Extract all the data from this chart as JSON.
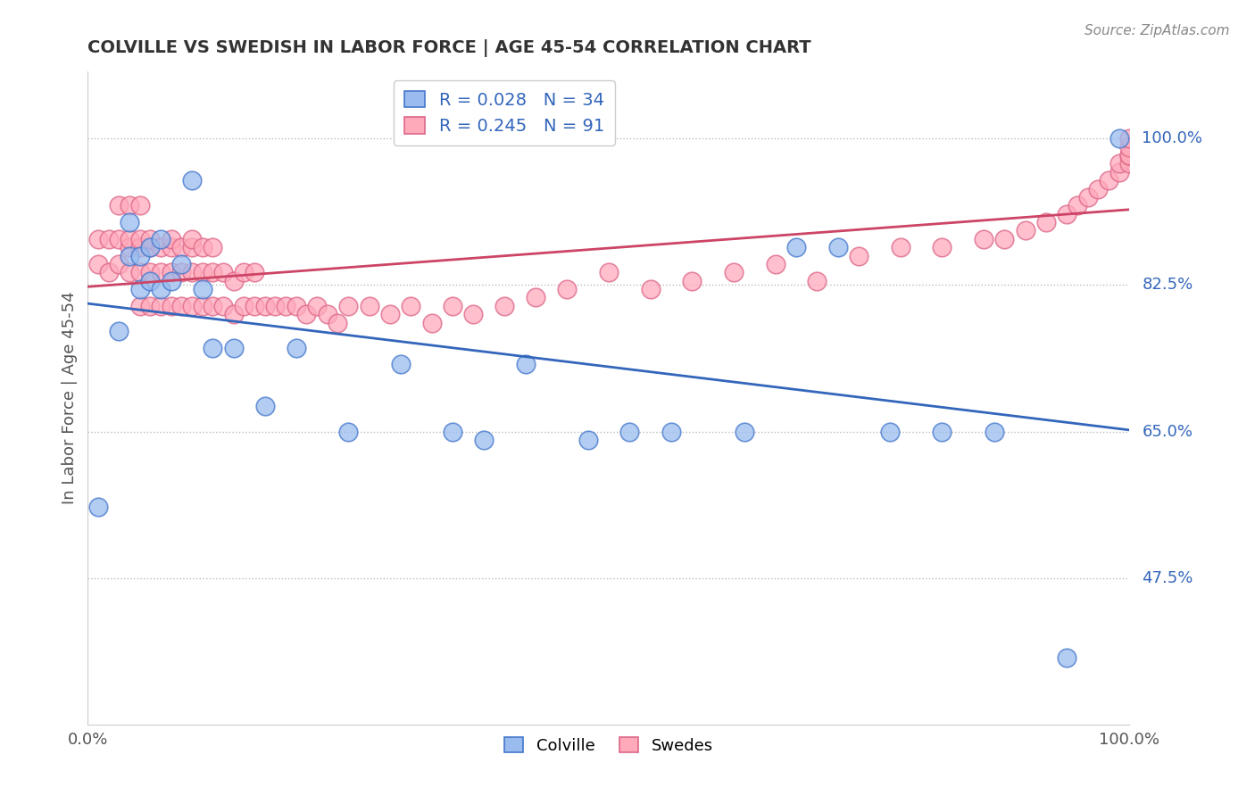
{
  "title": "COLVILLE VS SWEDISH IN LABOR FORCE | AGE 45-54 CORRELATION CHART",
  "source": "Source: ZipAtlas.com",
  "ylabel": "In Labor Force | Age 45-54",
  "xlim": [
    0.0,
    1.0
  ],
  "ylim": [
    0.3,
    1.08
  ],
  "yticks": [
    0.475,
    0.65,
    0.825,
    1.0
  ],
  "ytick_labels": [
    "47.5%",
    "65.0%",
    "82.5%",
    "100.0%"
  ],
  "colville_R": 0.028,
  "colville_N": 34,
  "swedes_R": 0.245,
  "swedes_N": 91,
  "colville_color": "#99BBEE",
  "swedes_color": "#FFAABB",
  "colville_edge_color": "#4477CC",
  "swedes_edge_color": "#DD6688",
  "colville_line_color": "#3366BB",
  "swedes_line_color": "#CC4466",
  "background_color": "#FFFFFF",
  "right_label_color": "#3366BB",
  "colville_x": [
    0.01,
    0.03,
    0.04,
    0.04,
    0.05,
    0.05,
    0.06,
    0.06,
    0.07,
    0.07,
    0.08,
    0.09,
    0.1,
    0.11,
    0.12,
    0.14,
    0.17,
    0.2,
    0.25,
    0.3,
    0.35,
    0.38,
    0.42,
    0.48,
    0.52,
    0.56,
    0.63,
    0.68,
    0.72,
    0.77,
    0.82,
    0.87,
    0.94,
    0.99
  ],
  "colville_y": [
    0.56,
    0.77,
    0.86,
    0.9,
    0.82,
    0.86,
    0.83,
    0.87,
    0.82,
    0.88,
    0.83,
    0.85,
    0.95,
    0.82,
    0.75,
    0.75,
    0.68,
    0.75,
    0.65,
    0.73,
    0.65,
    0.64,
    0.73,
    0.64,
    0.65,
    0.65,
    0.65,
    0.87,
    0.87,
    0.65,
    0.65,
    0.65,
    0.38,
    1.0
  ],
  "swedes_x": [
    0.01,
    0.01,
    0.02,
    0.02,
    0.03,
    0.03,
    0.03,
    0.04,
    0.04,
    0.04,
    0.04,
    0.05,
    0.05,
    0.05,
    0.05,
    0.05,
    0.06,
    0.06,
    0.06,
    0.06,
    0.07,
    0.07,
    0.07,
    0.08,
    0.08,
    0.08,
    0.08,
    0.09,
    0.09,
    0.09,
    0.1,
    0.1,
    0.1,
    0.1,
    0.11,
    0.11,
    0.11,
    0.12,
    0.12,
    0.12,
    0.13,
    0.13,
    0.14,
    0.14,
    0.15,
    0.15,
    0.16,
    0.16,
    0.17,
    0.18,
    0.19,
    0.2,
    0.21,
    0.22,
    0.23,
    0.24,
    0.25,
    0.27,
    0.29,
    0.31,
    0.33,
    0.35,
    0.37,
    0.4,
    0.43,
    0.46,
    0.5,
    0.54,
    0.58,
    0.62,
    0.66,
    0.7,
    0.74,
    0.78,
    0.82,
    0.86,
    0.88,
    0.9,
    0.92,
    0.94,
    0.95,
    0.96,
    0.97,
    0.98,
    0.99,
    0.99,
    1.0,
    1.0,
    1.0,
    1.0,
    1.0
  ],
  "swedes_y": [
    0.85,
    0.88,
    0.84,
    0.88,
    0.85,
    0.88,
    0.92,
    0.84,
    0.87,
    0.88,
    0.92,
    0.8,
    0.84,
    0.87,
    0.88,
    0.92,
    0.8,
    0.84,
    0.87,
    0.88,
    0.8,
    0.84,
    0.87,
    0.8,
    0.84,
    0.87,
    0.88,
    0.8,
    0.84,
    0.87,
    0.8,
    0.84,
    0.87,
    0.88,
    0.8,
    0.84,
    0.87,
    0.8,
    0.84,
    0.87,
    0.8,
    0.84,
    0.79,
    0.83,
    0.8,
    0.84,
    0.8,
    0.84,
    0.8,
    0.8,
    0.8,
    0.8,
    0.79,
    0.8,
    0.79,
    0.78,
    0.8,
    0.8,
    0.79,
    0.8,
    0.78,
    0.8,
    0.79,
    0.8,
    0.81,
    0.82,
    0.84,
    0.82,
    0.83,
    0.84,
    0.85,
    0.83,
    0.86,
    0.87,
    0.87,
    0.88,
    0.88,
    0.89,
    0.9,
    0.91,
    0.92,
    0.93,
    0.94,
    0.95,
    0.96,
    0.97,
    0.97,
    0.98,
    0.98,
    0.99,
    1.0
  ]
}
